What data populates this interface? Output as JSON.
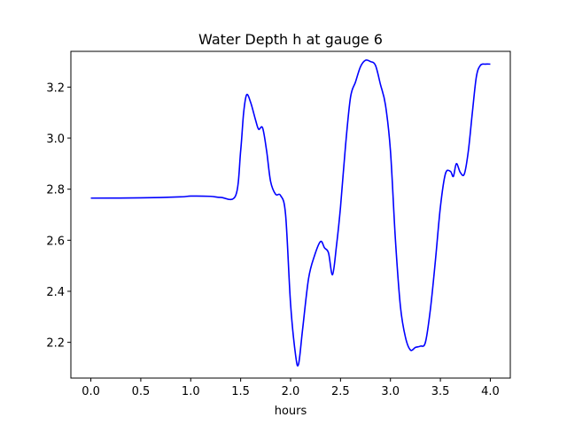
{
  "chart_data": {
    "type": "line",
    "title": "Water Depth h at gauge 6",
    "xlabel": "hours",
    "ylabel": "",
    "xlim": [
      -0.2,
      4.2
    ],
    "ylim": [
      2.06,
      3.34
    ],
    "xticks": [
      0.0,
      0.5,
      1.0,
      1.5,
      2.0,
      2.5,
      3.0,
      3.5,
      4.0
    ],
    "xtick_labels": [
      "0.0",
      "0.5",
      "1.0",
      "1.5",
      "2.0",
      "2.5",
      "3.0",
      "3.5",
      "4.0"
    ],
    "yticks": [
      2.2,
      2.4,
      2.6,
      2.8,
      3.0,
      3.2
    ],
    "ytick_labels": [
      "2.2",
      "2.4",
      "2.6",
      "2.8",
      "3.0",
      "3.2"
    ],
    "grid": false,
    "series": [
      {
        "color": "#0000ff",
        "x": [
          0.0,
          0.5,
          0.9,
          1.0,
          1.2,
          1.3,
          1.45,
          1.5,
          1.53,
          1.56,
          1.6,
          1.65,
          1.68,
          1.72,
          1.76,
          1.8,
          1.85,
          1.9,
          1.95,
          2.0,
          2.05,
          2.08,
          2.12,
          2.18,
          2.24,
          2.3,
          2.34,
          2.38,
          2.42,
          2.46,
          2.5,
          2.55,
          2.6,
          2.65,
          2.7,
          2.75,
          2.8,
          2.85,
          2.9,
          2.95,
          3.0,
          3.05,
          3.1,
          3.15,
          3.2,
          3.25,
          3.3,
          3.35,
          3.4,
          3.45,
          3.5,
          3.55,
          3.6,
          3.63,
          3.66,
          3.7,
          3.74,
          3.78,
          3.82,
          3.86,
          3.9,
          3.95,
          4.0
        ],
        "y": [
          2.765,
          2.766,
          2.77,
          2.773,
          2.772,
          2.768,
          2.775,
          2.95,
          3.1,
          3.17,
          3.14,
          3.07,
          3.035,
          3.04,
          2.95,
          2.83,
          2.78,
          2.775,
          2.7,
          2.35,
          2.15,
          2.115,
          2.25,
          2.45,
          2.54,
          2.595,
          2.57,
          2.55,
          2.465,
          2.58,
          2.73,
          2.97,
          3.16,
          3.22,
          3.28,
          3.305,
          3.3,
          3.285,
          3.21,
          3.13,
          2.95,
          2.6,
          2.34,
          2.22,
          2.17,
          2.18,
          2.185,
          2.2,
          2.33,
          2.52,
          2.73,
          2.86,
          2.87,
          2.85,
          2.9,
          2.865,
          2.86,
          2.95,
          3.1,
          3.24,
          3.285,
          3.29,
          3.29
        ]
      }
    ]
  }
}
